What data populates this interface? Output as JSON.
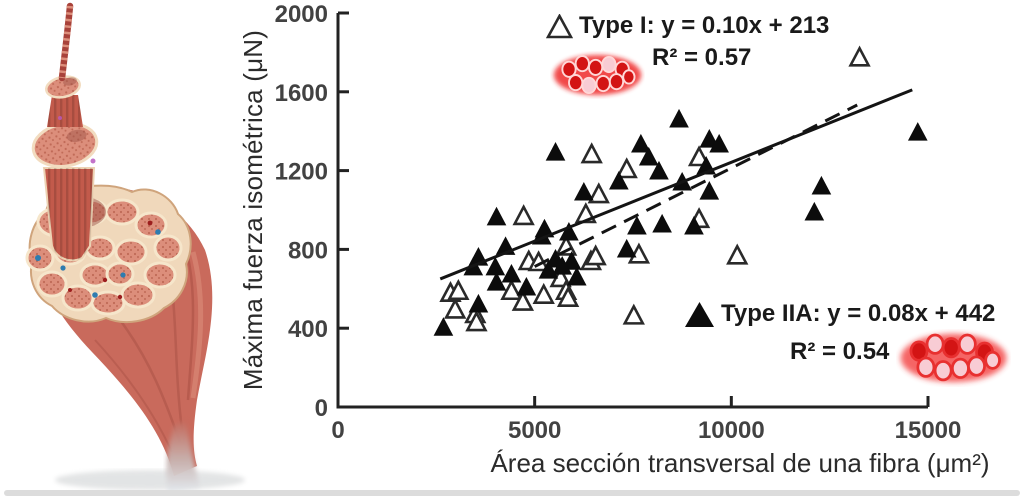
{
  "colors": {
    "axis": "#222222",
    "marker_black": "#0c0c0c",
    "tick_text": "#424242",
    "fiber_icon_red": "#d31414",
    "fiber_icon_pink": "#f8ccd4",
    "muscle_salmon": "#c96a5c"
  },
  "illustration": {
    "name": "muscle-fiber-hierarchy-illustration"
  },
  "chart_data": {
    "type": "scatter",
    "title": "",
    "xlabel": "Área sección transversal de una fibra (μm²)",
    "ylabel": "Máxima fuerza isométrica (μN)",
    "xlim": [
      0,
      15000
    ],
    "ylim": [
      0,
      2000
    ],
    "x_ticks": [
      0,
      5000,
      10000,
      15000
    ],
    "y_ticks": [
      0,
      400,
      800,
      1200,
      1600,
      2000
    ],
    "grid": false,
    "legend_position": "inside: Type I top-center-right, Type IIA lower-right",
    "series": [
      {
        "name": "Type I",
        "marker": "open-triangle",
        "fit_label": "Type I: y = 0.10x + 213",
        "r2_label": "R² = 0.57",
        "fit": {
          "slope": 0.1,
          "intercept": 213,
          "x_range": [
            5000,
            13200
          ],
          "style": "dashed"
        },
        "points": [
          [
            2860,
            575
          ],
          [
            2980,
            490
          ],
          [
            3060,
            585
          ],
          [
            3490,
            467
          ],
          [
            3520,
            426
          ],
          [
            4410,
            585
          ],
          [
            4700,
            530
          ],
          [
            4720,
            965
          ],
          [
            4850,
            736
          ],
          [
            5100,
            731
          ],
          [
            5230,
            565
          ],
          [
            5660,
            650
          ],
          [
            5800,
            585
          ],
          [
            5800,
            810
          ],
          [
            5850,
            550
          ],
          [
            6300,
            975
          ],
          [
            6430,
            736
          ],
          [
            6550,
            761
          ],
          [
            6630,
            1076
          ],
          [
            6450,
            1279
          ],
          [
            7340,
            1203
          ],
          [
            7520,
            460
          ],
          [
            7650,
            770
          ],
          [
            9180,
            1264
          ],
          [
            9180,
            950
          ],
          [
            10150,
            765
          ],
          [
            13260,
            1770
          ]
        ]
      },
      {
        "name": "Type IIA",
        "marker": "filled-triangle",
        "fit_label": "Type IIA: y = 0.08x + 442",
        "r2_label": "R² = 0.54",
        "fit": {
          "slope": 0.08,
          "intercept": 442,
          "x_range": [
            2600,
            14600
          ],
          "style": "solid"
        },
        "points": [
          [
            2680,
            400
          ],
          [
            3440,
            706
          ],
          [
            3570,
            756
          ],
          [
            3570,
            518
          ],
          [
            4000,
            706
          ],
          [
            4030,
            629
          ],
          [
            4030,
            960
          ],
          [
            4260,
            810
          ],
          [
            4410,
            670
          ],
          [
            4790,
            604
          ],
          [
            5180,
            863
          ],
          [
            5250,
            899
          ],
          [
            5350,
            690
          ],
          [
            5530,
            746
          ],
          [
            5530,
            1289
          ],
          [
            5700,
            710
          ],
          [
            5870,
            883
          ],
          [
            5940,
            735
          ],
          [
            6070,
            655
          ],
          [
            6250,
            1086
          ],
          [
            7140,
            1142
          ],
          [
            7340,
            797
          ],
          [
            7600,
            914
          ],
          [
            7700,
            1330
          ],
          [
            7900,
            1264
          ],
          [
            8160,
            1193
          ],
          [
            8240,
            924
          ],
          [
            8670,
            1457
          ],
          [
            8750,
            1137
          ],
          [
            9050,
            914
          ],
          [
            9360,
            1218
          ],
          [
            9440,
            1091
          ],
          [
            9440,
            1355
          ],
          [
            9690,
            1330
          ],
          [
            12110,
            985
          ],
          [
            12290,
            1117
          ],
          [
            14740,
            1390
          ]
        ]
      }
    ]
  }
}
